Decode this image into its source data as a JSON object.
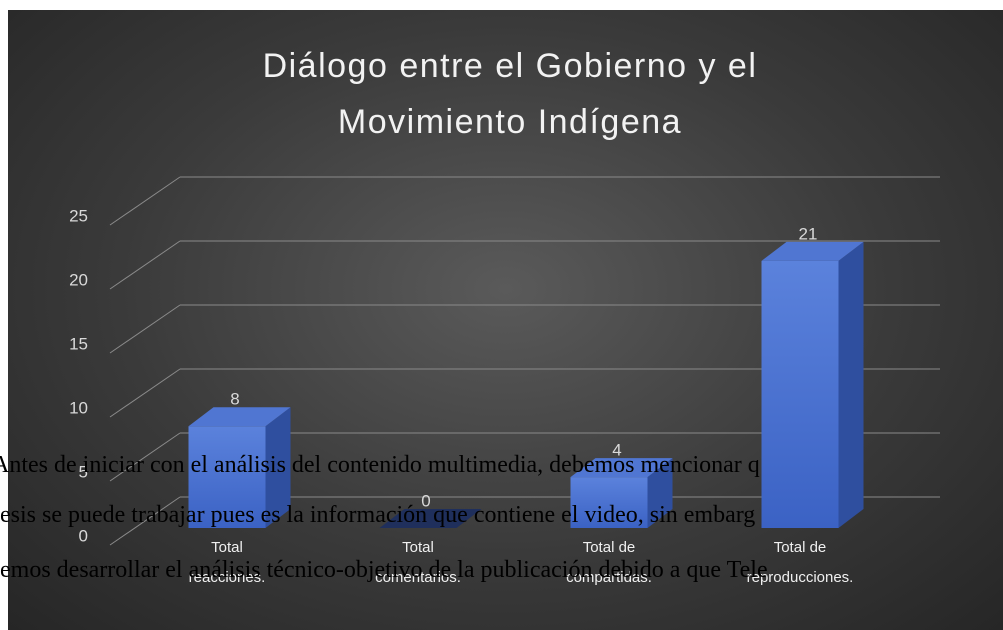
{
  "chart_data": {
    "type": "bar3d",
    "title": "Diálogo entre el Gobierno y el Movimiento Indígena",
    "categories": [
      "Total reacciones.",
      "Total comentarios.",
      "Total de compartidas.",
      "Total de reproducciones."
    ],
    "values": [
      8,
      0,
      4,
      21
    ],
    "color": "#4472c4",
    "ylim": [
      0,
      25
    ],
    "yticks": [
      0,
      5,
      10,
      15,
      20,
      25
    ],
    "grid": true
  },
  "document": {
    "lines": [
      "Antes de iniciar con el análisis del contenido multimedia, debemos mencionar q",
      "esis se puede trabajar pues es la información que contiene el video, sin embarg",
      "emos desarrollar el análisis técnico-objetivo de la publicación debido a que Tele"
    ]
  }
}
